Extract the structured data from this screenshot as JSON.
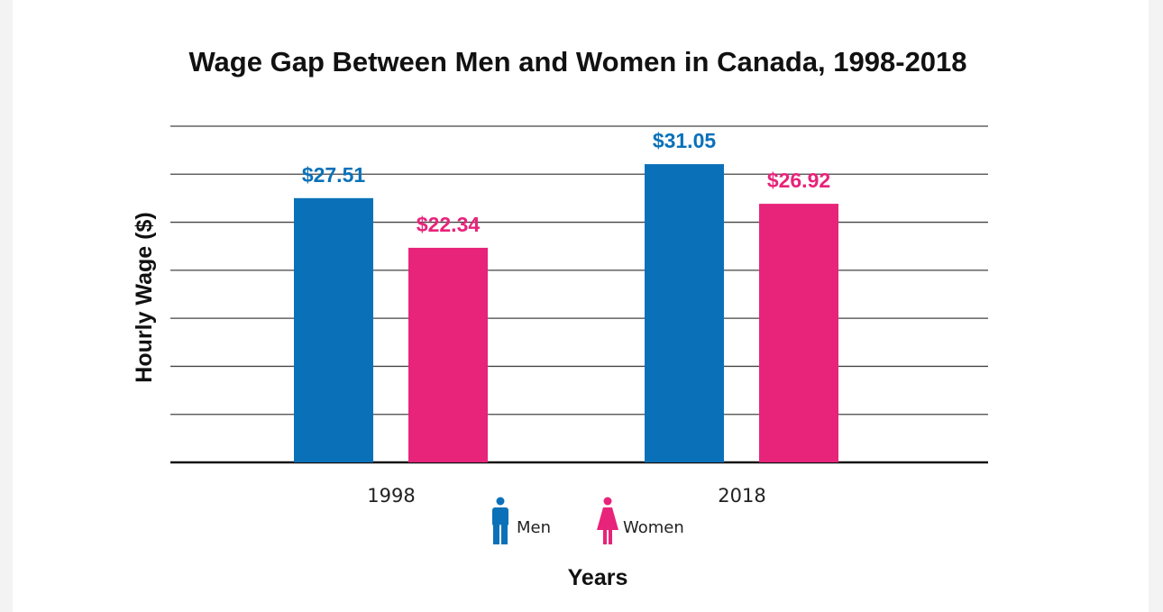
{
  "chart_data": {
    "type": "bar",
    "title": "Wage Gap Between Men and Women in Canada, 1998-2018",
    "xlabel": "Years",
    "ylabel": "Hourly Wage ($)",
    "categories": [
      "1998",
      "2018"
    ],
    "ylim": [
      0,
      35
    ],
    "grid": true,
    "legend_position": "bottom-center",
    "series": [
      {
        "name": "Men",
        "values": [
          27.51,
          31.05
        ],
        "labels": [
          "$27.51",
          "$31.05"
        ],
        "color": "#0a71b9",
        "icon": "man-icon"
      },
      {
        "name": "Women",
        "values": [
          22.34,
          26.92
        ],
        "labels": [
          "$22.34",
          "$26.92"
        ],
        "color": "#e8237a",
        "icon": "woman-icon"
      }
    ]
  }
}
